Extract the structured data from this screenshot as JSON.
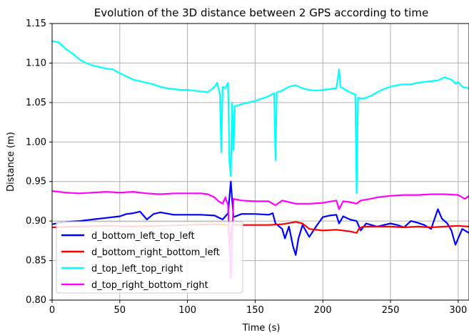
{
  "chart_data": {
    "type": "line",
    "title": "Evolution of the 3D distance between 2 GPS according to time",
    "xlabel": "Time (s)",
    "ylabel": "Distance (m)",
    "xlim": [
      0,
      308
    ],
    "ylim": [
      0.8,
      1.15
    ],
    "xticks": [
      0,
      50,
      100,
      150,
      200,
      250,
      300
    ],
    "yticks": [
      0.8,
      0.85,
      0.9,
      0.95,
      1.0,
      1.05,
      1.1,
      1.15
    ],
    "xtick_labels": [
      "0",
      "50",
      "100",
      "150",
      "200",
      "250",
      "300"
    ],
    "ytick_labels": [
      "0.80",
      "0.85",
      "0.90",
      "0.95",
      "1.00",
      "1.05",
      "1.10",
      "1.15"
    ],
    "grid": true,
    "legend": "lower-left",
    "series": [
      {
        "name": "d_bottom_left_top_left",
        "color": "#0000ff",
        "points": [
          [
            0,
            0.896
          ],
          [
            10,
            0.899
          ],
          [
            20,
            0.9
          ],
          [
            30,
            0.902
          ],
          [
            40,
            0.904
          ],
          [
            50,
            0.906
          ],
          [
            55,
            0.909
          ],
          [
            60,
            0.91
          ],
          [
            65,
            0.912
          ],
          [
            70,
            0.902
          ],
          [
            75,
            0.909
          ],
          [
            80,
            0.911
          ],
          [
            90,
            0.908
          ],
          [
            100,
            0.908
          ],
          [
            110,
            0.908
          ],
          [
            120,
            0.907
          ],
          [
            126,
            0.902
          ],
          [
            130,
            0.91
          ],
          [
            132,
            0.95
          ],
          [
            134,
            0.905
          ],
          [
            140,
            0.909
          ],
          [
            150,
            0.909
          ],
          [
            160,
            0.908
          ],
          [
            163,
            0.91
          ],
          [
            165,
            0.897
          ],
          [
            170,
            0.89
          ],
          [
            172,
            0.878
          ],
          [
            175,
            0.893
          ],
          [
            178,
            0.868
          ],
          [
            180,
            0.857
          ],
          [
            182,
            0.878
          ],
          [
            185,
            0.895
          ],
          [
            190,
            0.88
          ],
          [
            195,
            0.893
          ],
          [
            200,
            0.905
          ],
          [
            205,
            0.907
          ],
          [
            210,
            0.908
          ],
          [
            212,
            0.897
          ],
          [
            215,
            0.906
          ],
          [
            220,
            0.902
          ],
          [
            225,
            0.9
          ],
          [
            228,
            0.888
          ],
          [
            232,
            0.897
          ],
          [
            240,
            0.893
          ],
          [
            250,
            0.897
          ],
          [
            255,
            0.895
          ],
          [
            260,
            0.892
          ],
          [
            265,
            0.9
          ],
          [
            270,
            0.898
          ],
          [
            275,
            0.895
          ],
          [
            280,
            0.89
          ],
          [
            285,
            0.915
          ],
          [
            288,
            0.903
          ],
          [
            292,
            0.897
          ],
          [
            295,
            0.888
          ],
          [
            298,
            0.87
          ],
          [
            300,
            0.878
          ],
          [
            303,
            0.89
          ],
          [
            308,
            0.885
          ]
        ]
      },
      {
        "name": "d_bottom_right_bottom_left",
        "color": "#ff0000",
        "points": [
          [
            0,
            0.892
          ],
          [
            20,
            0.893
          ],
          [
            40,
            0.894
          ],
          [
            60,
            0.893
          ],
          [
            80,
            0.894
          ],
          [
            100,
            0.895
          ],
          [
            120,
            0.896
          ],
          [
            130,
            0.895
          ],
          [
            131,
            0.87
          ],
          [
            133,
            0.895
          ],
          [
            150,
            0.895
          ],
          [
            160,
            0.895
          ],
          [
            170,
            0.896
          ],
          [
            180,
            0.899
          ],
          [
            185,
            0.897
          ],
          [
            190,
            0.89
          ],
          [
            200,
            0.888
          ],
          [
            210,
            0.889
          ],
          [
            220,
            0.887
          ],
          [
            225,
            0.885
          ],
          [
            227,
            0.891
          ],
          [
            230,
            0.893
          ],
          [
            240,
            0.893
          ],
          [
            250,
            0.893
          ],
          [
            260,
            0.892
          ],
          [
            270,
            0.893
          ],
          [
            280,
            0.892
          ],
          [
            290,
            0.893
          ],
          [
            300,
            0.894
          ],
          [
            308,
            0.893
          ]
        ]
      },
      {
        "name": "d_top_left_top_right",
        "color": "#00ffff",
        "points": [
          [
            0,
            1.128
          ],
          [
            5,
            1.126
          ],
          [
            10,
            1.118
          ],
          [
            15,
            1.112
          ],
          [
            20,
            1.105
          ],
          [
            25,
            1.1
          ],
          [
            30,
            1.097
          ],
          [
            35,
            1.095
          ],
          [
            40,
            1.093
          ],
          [
            45,
            1.092
          ],
          [
            50,
            1.087
          ],
          [
            55,
            1.083
          ],
          [
            60,
            1.079
          ],
          [
            65,
            1.077
          ],
          [
            70,
            1.075
          ],
          [
            75,
            1.073
          ],
          [
            80,
            1.07
          ],
          [
            85,
            1.068
          ],
          [
            90,
            1.067
          ],
          [
            95,
            1.066
          ],
          [
            100,
            1.066
          ],
          [
            105,
            1.065
          ],
          [
            110,
            1.064
          ],
          [
            115,
            1.063
          ],
          [
            120,
            1.07
          ],
          [
            122,
            1.075
          ],
          [
            124,
            1.06
          ],
          [
            125,
            0.987
          ],
          [
            126,
            1.07
          ],
          [
            128,
            1.068
          ],
          [
            130,
            1.075
          ],
          [
            131,
            0.975
          ],
          [
            132,
            0.957
          ],
          [
            133,
            1.05
          ],
          [
            134,
            0.99
          ],
          [
            135,
            1.045
          ],
          [
            140,
            1.048
          ],
          [
            145,
            1.05
          ],
          [
            150,
            1.052
          ],
          [
            155,
            1.055
          ],
          [
            160,
            1.058
          ],
          [
            164,
            1.062
          ],
          [
            165,
            0.977
          ],
          [
            166,
            1.063
          ],
          [
            170,
            1.065
          ],
          [
            175,
            1.07
          ],
          [
            180,
            1.072
          ],
          [
            185,
            1.068
          ],
          [
            190,
            1.066
          ],
          [
            195,
            1.065
          ],
          [
            200,
            1.066
          ],
          [
            205,
            1.067
          ],
          [
            210,
            1.068
          ],
          [
            212,
            1.092
          ],
          [
            213,
            1.07
          ],
          [
            215,
            1.068
          ],
          [
            220,
            1.063
          ],
          [
            224,
            1.06
          ],
          [
            225,
            0.935
          ],
          [
            226,
            1.056
          ],
          [
            230,
            1.055
          ],
          [
            235,
            1.058
          ],
          [
            240,
            1.063
          ],
          [
            245,
            1.067
          ],
          [
            250,
            1.07
          ],
          [
            255,
            1.072
          ],
          [
            260,
            1.073
          ],
          [
            265,
            1.073
          ],
          [
            270,
            1.075
          ],
          [
            275,
            1.076
          ],
          [
            280,
            1.077
          ],
          [
            285,
            1.078
          ],
          [
            290,
            1.082
          ],
          [
            295,
            1.079
          ],
          [
            298,
            1.074
          ],
          [
            300,
            1.076
          ],
          [
            303,
            1.07
          ],
          [
            308,
            1.068
          ]
        ]
      },
      {
        "name": "d_top_right_bottom_right",
        "color": "#ff00ff",
        "points": [
          [
            0,
            0.938
          ],
          [
            10,
            0.936
          ],
          [
            20,
            0.935
          ],
          [
            30,
            0.936
          ],
          [
            40,
            0.937
          ],
          [
            50,
            0.936
          ],
          [
            60,
            0.937
          ],
          [
            70,
            0.935
          ],
          [
            80,
            0.934
          ],
          [
            90,
            0.935
          ],
          [
            100,
            0.935
          ],
          [
            110,
            0.935
          ],
          [
            115,
            0.934
          ],
          [
            120,
            0.93
          ],
          [
            123,
            0.925
          ],
          [
            126,
            0.922
          ],
          [
            128,
            0.93
          ],
          [
            130,
            0.92
          ],
          [
            132,
            0.828
          ],
          [
            134,
            0.928
          ],
          [
            140,
            0.926
          ],
          [
            150,
            0.925
          ],
          [
            160,
            0.925
          ],
          [
            165,
            0.92
          ],
          [
            170,
            0.926
          ],
          [
            175,
            0.924
          ],
          [
            180,
            0.922
          ],
          [
            190,
            0.922
          ],
          [
            200,
            0.923
          ],
          [
            210,
            0.926
          ],
          [
            212,
            0.915
          ],
          [
            215,
            0.925
          ],
          [
            220,
            0.924
          ],
          [
            225,
            0.922
          ],
          [
            228,
            0.926
          ],
          [
            235,
            0.928
          ],
          [
            240,
            0.93
          ],
          [
            250,
            0.932
          ],
          [
            260,
            0.933
          ],
          [
            270,
            0.933
          ],
          [
            280,
            0.934
          ],
          [
            290,
            0.934
          ],
          [
            300,
            0.933
          ],
          [
            305,
            0.928
          ],
          [
            308,
            0.932
          ]
        ]
      }
    ]
  }
}
